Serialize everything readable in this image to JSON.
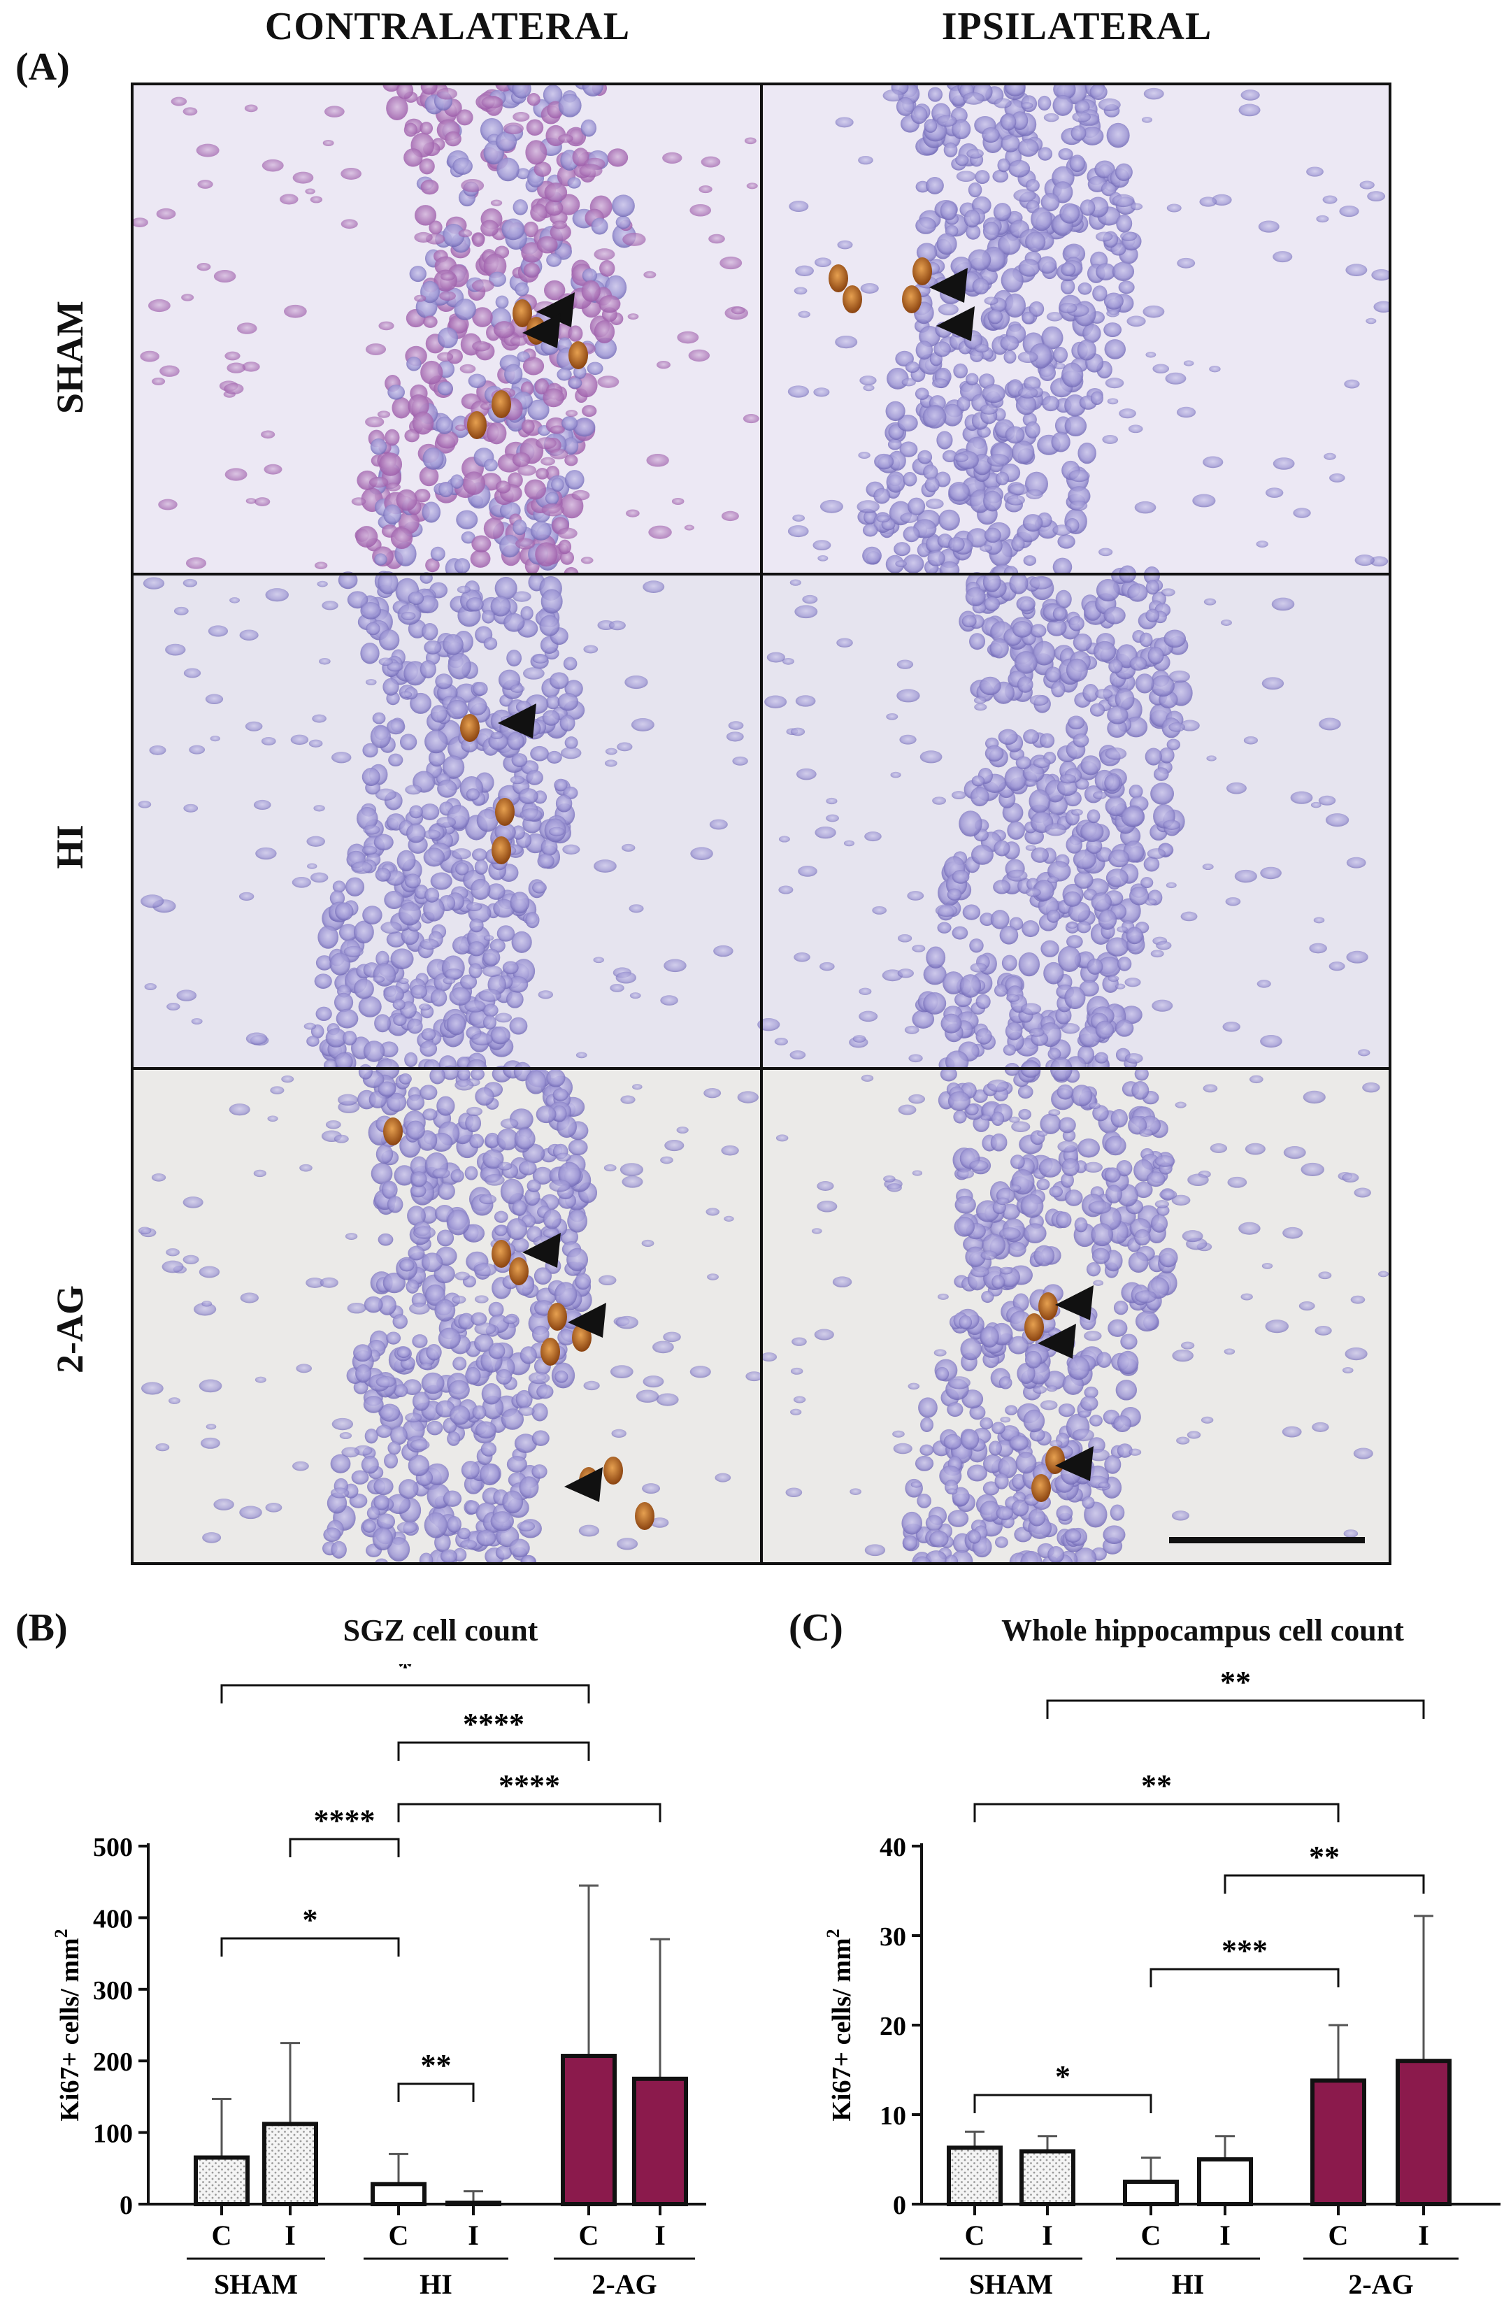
{
  "panel_a": {
    "label": "(A)",
    "col_headers": [
      "CONTRALATERAL",
      "IPSILATERAL"
    ],
    "row_labels": [
      "SHAM",
      "HI",
      "2-AG"
    ],
    "colors": {
      "sham_bg": "#ece8f4",
      "hi_bg": "#e6e4ef",
      "ag_bg": "#ebeae8",
      "nuclei": "#8c86c8",
      "stain": "#b0661c"
    }
  },
  "colors": {
    "ag_bar": "#8b1a4c",
    "sham_fill_dots": "#9a9a9a",
    "bar_stroke": "#111111"
  },
  "chart_data": [
    {
      "panel_label": "(B)",
      "type": "bar",
      "title": "SGZ cell count",
      "ylabel": "Ki67+ cells/ mm",
      "ylabel_sup": "2",
      "ylim": [
        0,
        500
      ],
      "yticks": [
        0,
        100,
        200,
        300,
        400,
        500
      ],
      "groups": [
        "SHAM",
        "HI",
        "2-AG"
      ],
      "categories": [
        "C",
        "I",
        "C",
        "I",
        "C",
        "I"
      ],
      "values": [
        65,
        112,
        28,
        2,
        207,
        175
      ],
      "errors": [
        82,
        113,
        42,
        16,
        238,
        195
      ],
      "significance": [
        {
          "from": 0,
          "to": 4,
          "label": "*"
        },
        {
          "from": 2,
          "to": 4,
          "label": "****"
        },
        {
          "from": 2,
          "to": 5,
          "label": "****"
        },
        {
          "from": 1,
          "to": 2,
          "label": "****"
        },
        {
          "from": 0,
          "to": 2,
          "label": "*"
        },
        {
          "from": 2,
          "to": 3,
          "label": "**"
        }
      ]
    },
    {
      "panel_label": "(C)",
      "type": "bar",
      "title": "Whole hippocampus cell count",
      "ylabel": "Ki67+ cells/ mm",
      "ylabel_sup": "2",
      "ylim": [
        0,
        40
      ],
      "yticks": [
        0,
        10,
        20,
        30,
        40
      ],
      "groups": [
        "SHAM",
        "HI",
        "2-AG"
      ],
      "categories": [
        "C",
        "I",
        "C",
        "I",
        "C",
        "I"
      ],
      "values": [
        6.3,
        5.9,
        2.5,
        5.0,
        13.8,
        16.0
      ],
      "errors": [
        1.8,
        1.7,
        2.7,
        2.6,
        6.2,
        16.2
      ],
      "significance": [
        {
          "from": 1,
          "to": 5,
          "label": "**"
        },
        {
          "from": 0,
          "to": 4,
          "label": "**"
        },
        {
          "from": 3,
          "to": 5,
          "label": "**"
        },
        {
          "from": 2,
          "to": 4,
          "label": "***"
        },
        {
          "from": 0,
          "to": 2,
          "label": "*"
        }
      ]
    }
  ]
}
